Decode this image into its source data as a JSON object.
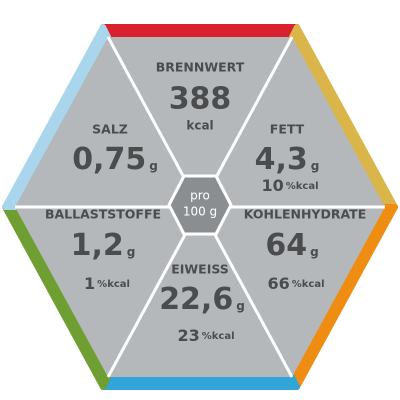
{
  "center": {
    "line1": "pro",
    "line2": "100 g"
  },
  "segments": [
    {
      "title": "BRENNWERT",
      "value": "388",
      "unit": "kcal"
    },
    {
      "title": "FETT",
      "value": "4,3",
      "unit": "g",
      "percent": "10",
      "percent_unit": "%kcal"
    },
    {
      "title": "KOHLENHYDRATE",
      "value": "64",
      "unit": "g",
      "percent": "66",
      "percent_unit": "%kcal"
    },
    {
      "title": "EIWEISS",
      "value": "22,6",
      "unit": "g",
      "percent": "23",
      "percent_unit": "%kcal"
    },
    {
      "title": "BALLASTSTOFFE",
      "value": "1,2",
      "unit": "g",
      "percent": "1",
      "percent_unit": "%kcal"
    },
    {
      "title": "SALZ",
      "value": "0,75",
      "unit": "g"
    }
  ]
}
